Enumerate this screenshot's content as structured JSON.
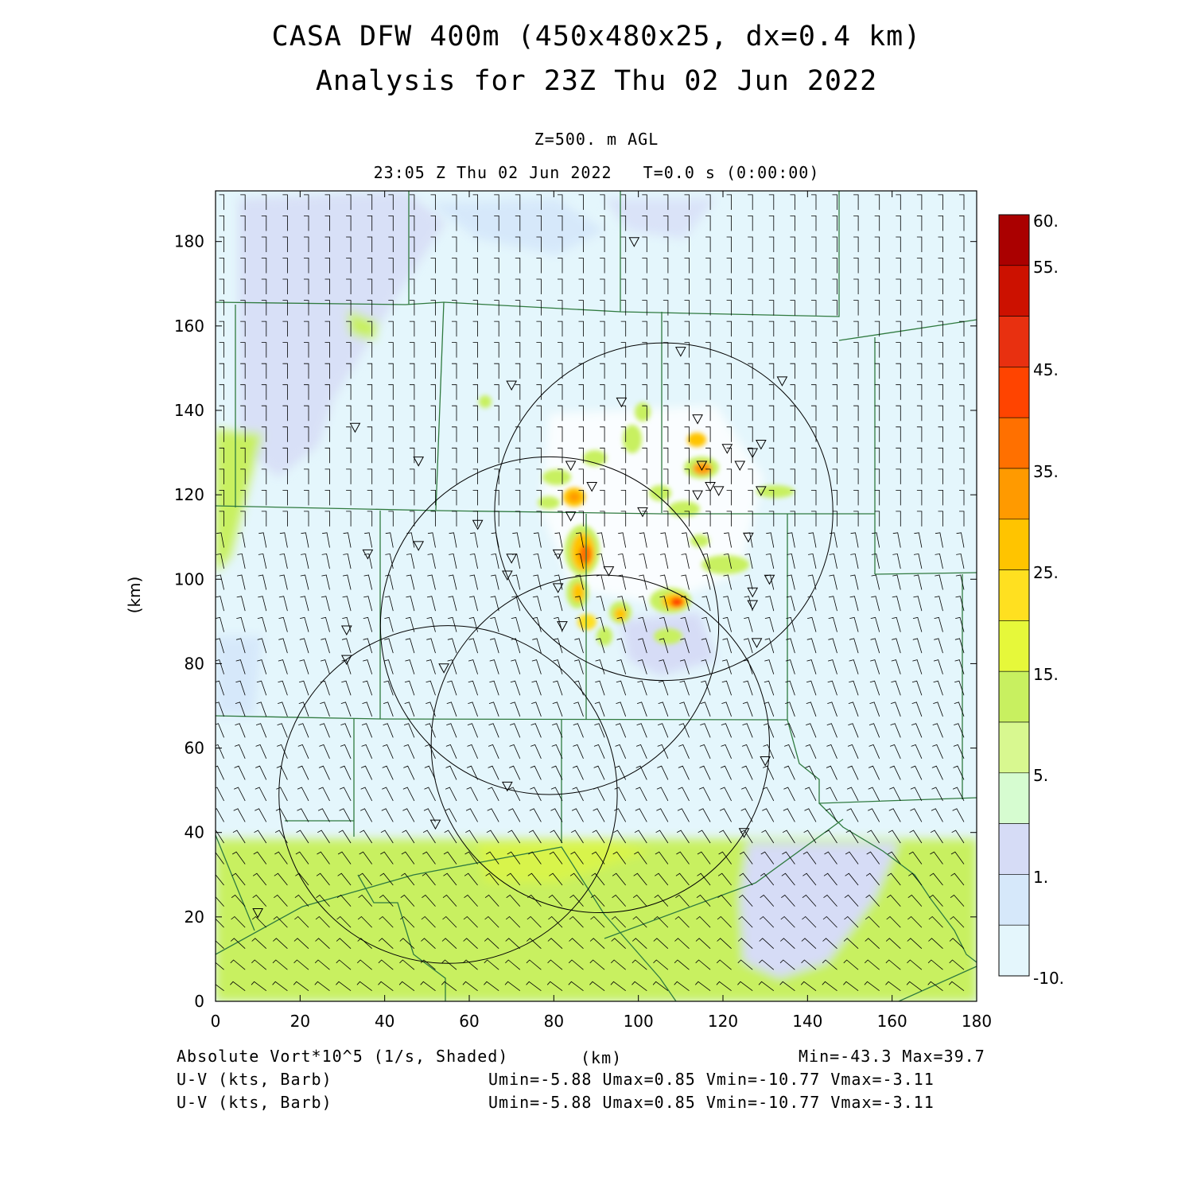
{
  "header": {
    "title_line1": "CASA DFW 400m (450x480x25, dx=0.4 km)",
    "title_line2": "Analysis for 23Z Thu 02 Jun 2022",
    "level": "Z=500. m AGL",
    "valid_time": "23:05 Z Thu 02 Jun 2022   T=0.0 s (0:00:00)"
  },
  "axes": {
    "x_label": "(km)",
    "y_label": "(km)",
    "x_range": [
      0,
      180
    ],
    "y_range": [
      0,
      192
    ],
    "x_ticks": [
      "0",
      "20",
      "40",
      "60",
      "80",
      "100",
      "120",
      "140",
      "160",
      "180"
    ],
    "y_ticks": [
      "0",
      "20",
      "40",
      "60",
      "80",
      "100",
      "120",
      "140",
      "160",
      "180"
    ]
  },
  "colorbar": {
    "labels": [
      "60.",
      "55.",
      "45.",
      "35.",
      "25.",
      "15.",
      "5.",
      "1.",
      "-10."
    ],
    "colors": [
      "#aa0000",
      "#cc1100",
      "#e83010",
      "#ff4400",
      "#ff7000",
      "#ff9a00",
      "#ffc400",
      "#ffe020",
      "#e6f83a",
      "#c8f060",
      "#d8f890",
      "#d6fcd0",
      "#d6dcf6",
      "#d6e8fa",
      "#e4f6fc"
    ]
  },
  "footer": {
    "field_label": "Absolute Vort*10^5 (1/s, Shaded)",
    "unit_label": "(km)",
    "minmax": "Min=-43.3 Max=39.7",
    "barb_label_1": "U-V (kts, Barb)",
    "barb_stats_1": "Umin=-5.88 Umax=0.85 Vmin=-10.77 Vmax=-3.11",
    "barb_label_2": "U-V (kts, Barb)",
    "barb_stats_2": "Umin=-5.88 Umax=0.85 Vmin=-10.77 Vmax=-3.11"
  },
  "colors": {
    "background_field": "#e4f6fc",
    "county_lines": "#2f7a3f",
    "radar_circles": "#000000"
  },
  "radar_rings": [
    {
      "center_km": [
        106,
        116
      ],
      "radius_km": 40
    },
    {
      "center_km": [
        79,
        89
      ],
      "radius_km": 40
    },
    {
      "center_km": [
        91,
        61
      ],
      "radius_km": 40
    },
    {
      "center_km": [
        55,
        49
      ],
      "radius_km": 40
    }
  ],
  "stations_km": [
    [
      99,
      180
    ],
    [
      110,
      154
    ],
    [
      134,
      147
    ],
    [
      70,
      146
    ],
    [
      96,
      142
    ],
    [
      114,
      138
    ],
    [
      33,
      136
    ],
    [
      48,
      128
    ],
    [
      84,
      127
    ],
    [
      121,
      131
    ],
    [
      127,
      130
    ],
    [
      129,
      132
    ],
    [
      124,
      127
    ],
    [
      115,
      127
    ],
    [
      89,
      122
    ],
    [
      114,
      120
    ],
    [
      117,
      122
    ],
    [
      119,
      121
    ],
    [
      129,
      121
    ],
    [
      84,
      115
    ],
    [
      101,
      116
    ],
    [
      62,
      113
    ],
    [
      126,
      110
    ],
    [
      36,
      106
    ],
    [
      48,
      108
    ],
    [
      70,
      105
    ],
    [
      81,
      106
    ],
    [
      69,
      101
    ],
    [
      93,
      102
    ],
    [
      131,
      100
    ],
    [
      81,
      98
    ],
    [
      127,
      97
    ],
    [
      127,
      94
    ],
    [
      82,
      89
    ],
    [
      31,
      88
    ],
    [
      128,
      85
    ],
    [
      31,
      81
    ],
    [
      54,
      79
    ],
    [
      130,
      57
    ],
    [
      69,
      51
    ],
    [
      52,
      42
    ],
    [
      125,
      40
    ],
    [
      10,
      21
    ]
  ]
}
